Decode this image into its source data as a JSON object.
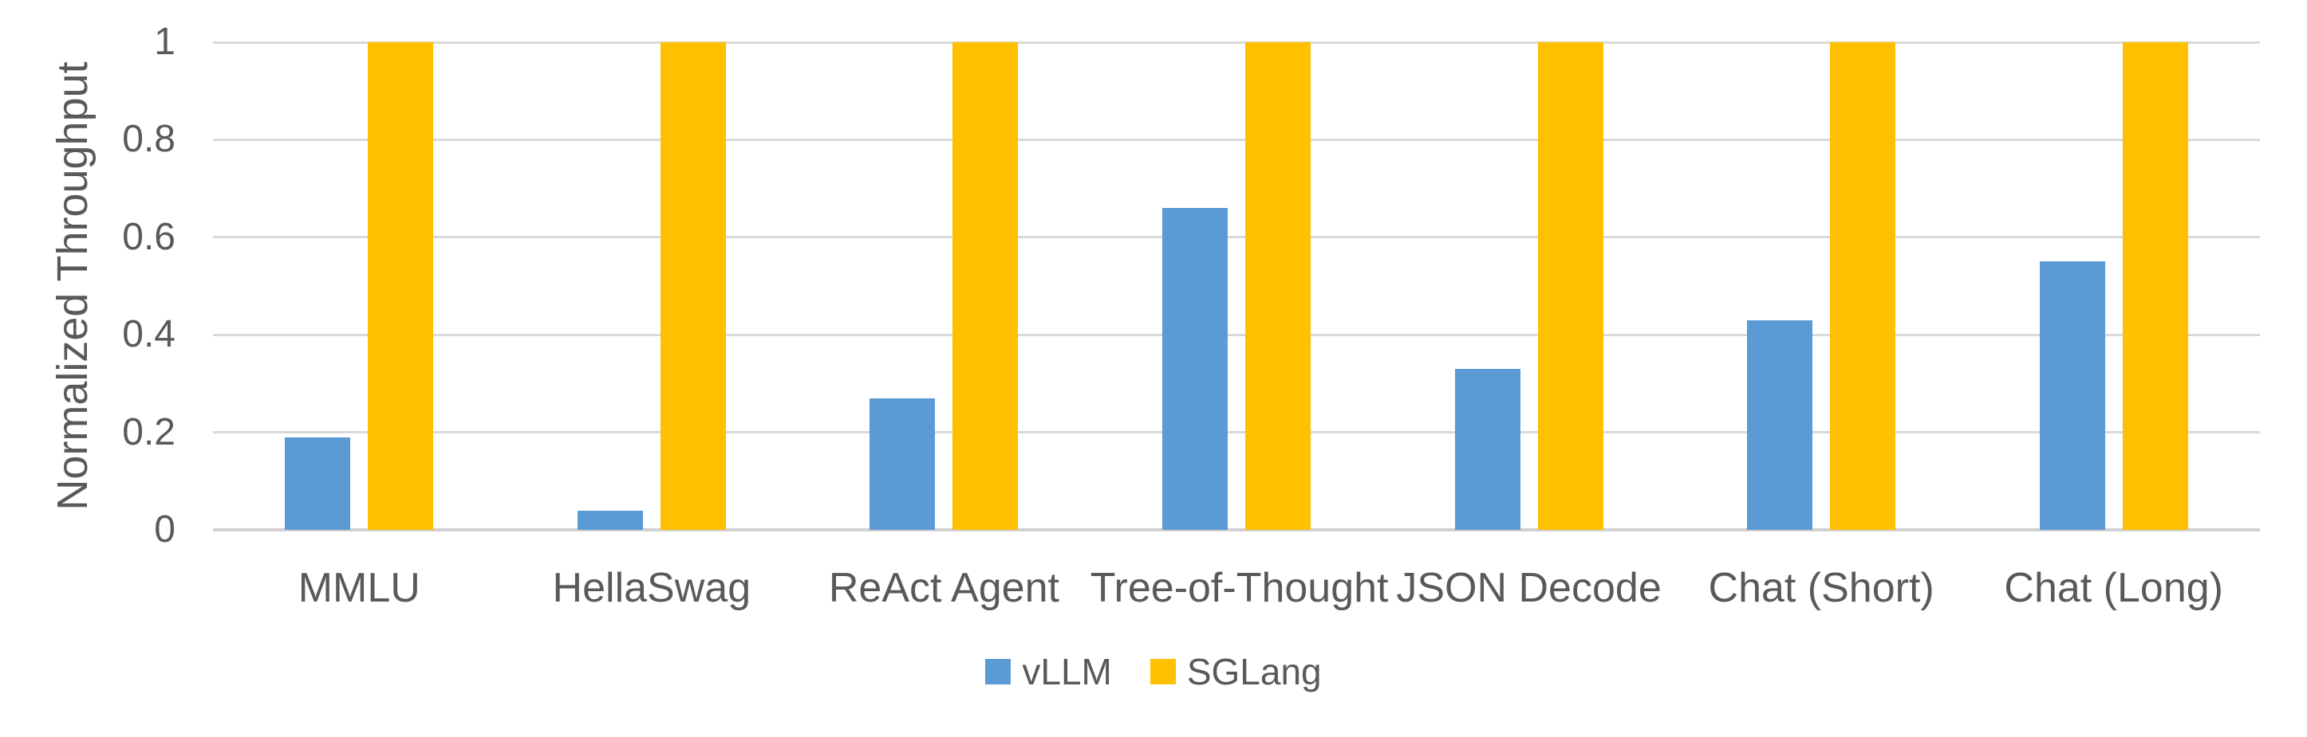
{
  "chart_data": {
    "type": "bar",
    "categories": [
      "MMLU",
      "HellaSwag",
      "ReAct Agent",
      "Tree-of-Thought",
      "JSON Decode",
      "Chat (Short)",
      "Chat (Long)"
    ],
    "series": [
      {
        "name": "vLLM",
        "color": "#5B9BD5",
        "values": [
          0.19,
          0.04,
          0.27,
          0.66,
          0.33,
          0.43,
          0.55
        ]
      },
      {
        "name": "SGLang",
        "color": "#FFC000",
        "values": [
          1,
          1,
          1,
          1,
          1,
          1,
          1
        ]
      }
    ],
    "xlabel": "",
    "ylabel": "Normalized Throughput",
    "ylim": [
      0,
      1
    ],
    "yticks": [
      {
        "value": 0,
        "label": "0"
      },
      {
        "value": 0.2,
        "label": "0.2"
      },
      {
        "value": 0.4,
        "label": "0.4"
      },
      {
        "value": 0.6,
        "label": "0.6"
      },
      {
        "value": 0.8,
        "label": "0.8"
      },
      {
        "value": 1,
        "label": "1"
      }
    ],
    "grid": "horizontal",
    "legend_position": "bottom"
  },
  "colors": {
    "gridline": "#D9D9D9",
    "axis_line": "#D2D0D0",
    "text": "#595959",
    "background": "#FFFFFF"
  }
}
